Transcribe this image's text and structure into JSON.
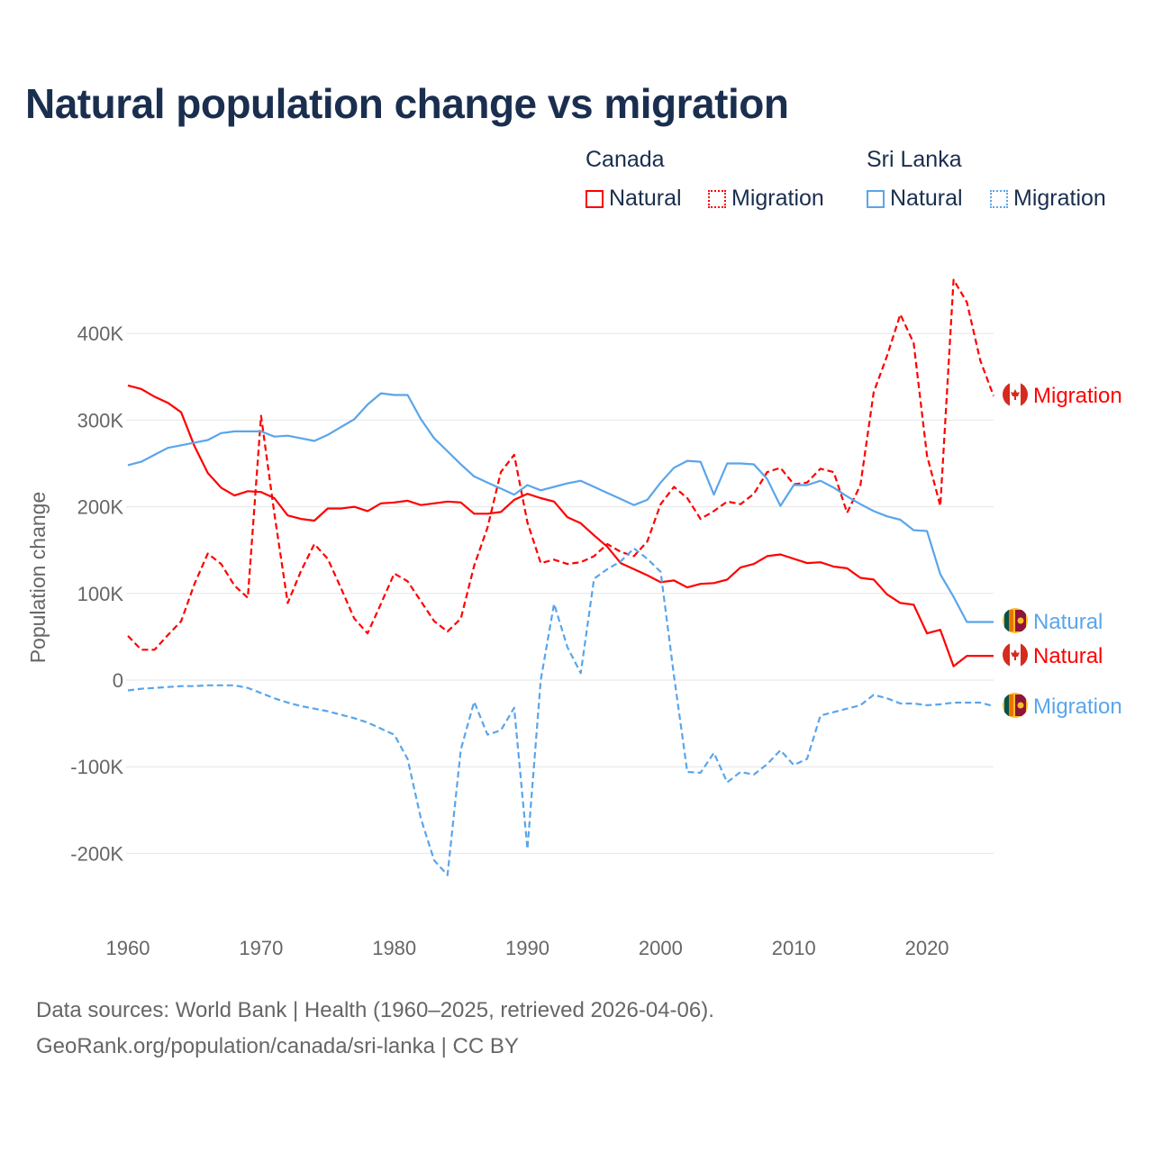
{
  "title": "Natural population change vs migration",
  "legend": {
    "groups": [
      {
        "label": "Canada",
        "color": "#ff0000",
        "items": [
          "Natural",
          "Migration"
        ]
      },
      {
        "label": "Sri Lanka",
        "color": "#5aa5eb",
        "items": [
          "Natural",
          "Migration"
        ]
      }
    ]
  },
  "footer": {
    "line1": "Data sources: World Bank | Health (1960–2025, retrieved 2026-04-06).",
    "line2": "GeoRank.org/population/canada/sri-lanka | CC BY"
  },
  "chart_data": {
    "type": "line",
    "title": "Natural population change vs migration",
    "xlabel": "",
    "ylabel": "Population change",
    "xlim": [
      1960,
      2025
    ],
    "ylim": [
      -260000,
      470000
    ],
    "x_ticks": [
      1960,
      1970,
      1980,
      1990,
      2000,
      2010,
      2020
    ],
    "x_tick_labels": [
      "1960",
      "1970",
      "1980",
      "1990",
      "2000",
      "2010",
      "2020"
    ],
    "y_ticks": [
      -200000,
      -100000,
      0,
      100000,
      200000,
      300000,
      400000
    ],
    "y_tick_labels": [
      "-200K",
      "-100K",
      "0",
      "100K",
      "200K",
      "300K",
      "400K"
    ],
    "grid": true,
    "x_start": 1960,
    "series": [
      {
        "name": "Canada Natural",
        "end_label": "Natural",
        "country": "canada",
        "color": "#ff0000",
        "dashed": false,
        "values": [
          340,
          336,
          327,
          320,
          309,
          270,
          239,
          222,
          213,
          218,
          217,
          210,
          190,
          186,
          184,
          198,
          198,
          200,
          195,
          204,
          205,
          207,
          202,
          204,
          206,
          205,
          192,
          192,
          194,
          208,
          215,
          210,
          206,
          188,
          181,
          167,
          154,
          135,
          128,
          121,
          113,
          115,
          107,
          111,
          112,
          116,
          130,
          134,
          143,
          145,
          140,
          135,
          136,
          131,
          129,
          118,
          116,
          99,
          89,
          87,
          54,
          58,
          16,
          28,
          28,
          28
        ]
      },
      {
        "name": "Canada Migration",
        "end_label": "Migration",
        "country": "canada",
        "color": "#ff0000",
        "dashed": true,
        "values": [
          51,
          35,
          35,
          52,
          68,
          111,
          146,
          134,
          109,
          95,
          305,
          192,
          89,
          126,
          157,
          140,
          106,
          71,
          54,
          88,
          123,
          114,
          91,
          68,
          56,
          71,
          132,
          176,
          240,
          260,
          182,
          135,
          139,
          134,
          136,
          143,
          157,
          148,
          143,
          160,
          203,
          223,
          210,
          186,
          195,
          206,
          203,
          215,
          240,
          245,
          226,
          228,
          244,
          240,
          193,
          225,
          332,
          374,
          422,
          389,
          259,
          201,
          462,
          436,
          369,
          328
        ]
      },
      {
        "name": "Sri Lanka Natural",
        "end_label": "Natural",
        "country": "srilanka",
        "color": "#5aa5eb",
        "dashed": false,
        "values": [
          248,
          252,
          260,
          268,
          271,
          274,
          277,
          285,
          287,
          287,
          287,
          281,
          282,
          279,
          276,
          283,
          292,
          301,
          318,
          331,
          329,
          329,
          301,
          279,
          264,
          249,
          235,
          228,
          221,
          214,
          225,
          219,
          223,
          227,
          230,
          223,
          216,
          209,
          202,
          208,
          228,
          245,
          253,
          252,
          214,
          250,
          250,
          249,
          232,
          201,
          225,
          225,
          230,
          222,
          212,
          203,
          195,
          189,
          185,
          173,
          172,
          122,
          96,
          67,
          67,
          67
        ]
      },
      {
        "name": "Sri Lanka Migration",
        "end_label": "Migration",
        "country": "srilanka",
        "color": "#5aa5eb",
        "dashed": true,
        "values": [
          -12,
          -10,
          -9,
          -8,
          -7,
          -7,
          -6,
          -6,
          -6,
          -9,
          -15,
          -21,
          -26,
          -30,
          -33,
          -36,
          -40,
          -44,
          -49,
          -56,
          -63,
          -91,
          -160,
          -208,
          -225,
          -80,
          -25,
          -63,
          -58,
          -32,
          -195,
          0,
          88,
          38,
          8,
          117,
          128,
          137,
          152,
          140,
          125,
          5,
          -106,
          -107,
          -84,
          -118,
          -106,
          -109,
          -97,
          -81,
          -98,
          -91,
          -41,
          -37,
          -33,
          -29,
          -17,
          -21,
          -27,
          -27,
          -29,
          -28,
          -26,
          -26,
          -26,
          -30
        ]
      }
    ],
    "value_unit": "thousands"
  }
}
